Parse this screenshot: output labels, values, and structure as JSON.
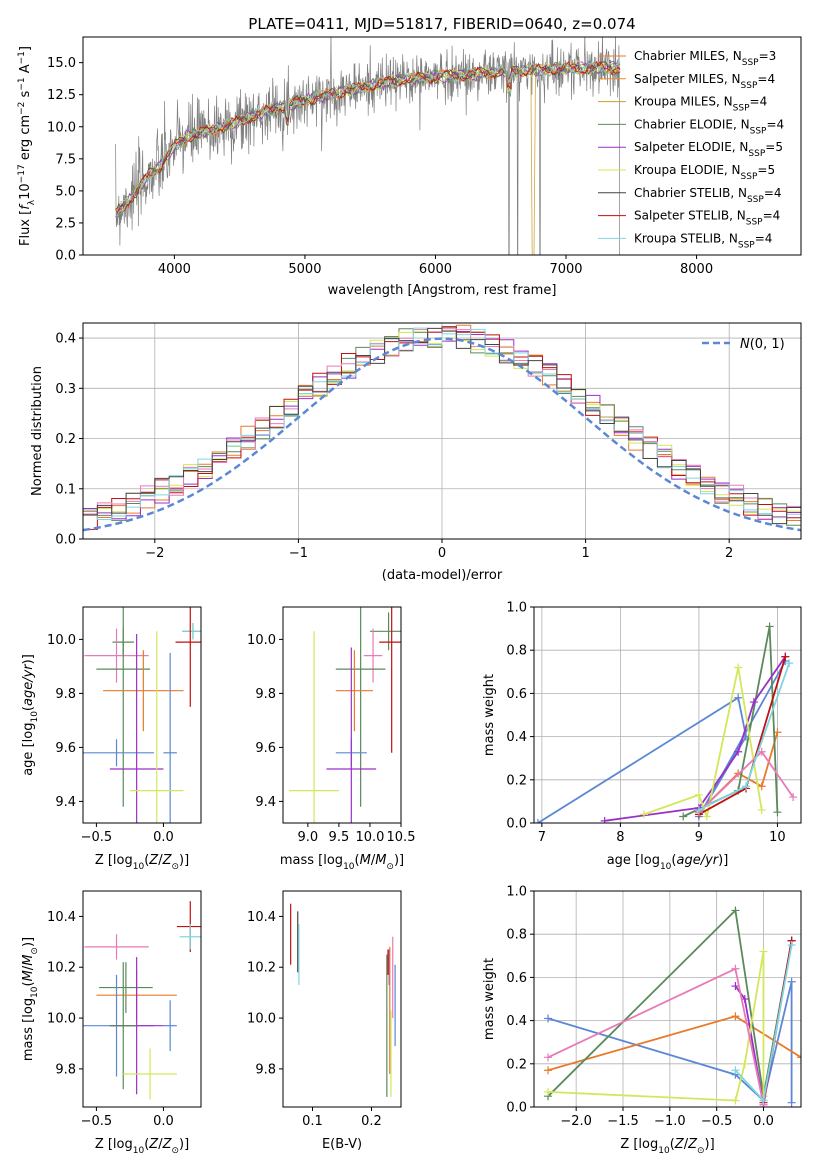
{
  "chart_data": [
    {
      "id": "spectrum",
      "type": "line",
      "title": "PLATE=0411, MJD=51817, FIBERID=0640, z=0.074",
      "xlabel": "wavelength [Angstrom, rest frame]",
      "ylabel": "Flux [f_λ 10^-17 erg cm^-2 s^-1 A^-1]",
      "xlim": [
        3300,
        8800
      ],
      "ylim": [
        0,
        17
      ],
      "xticks": [
        4000,
        5000,
        6000,
        7000,
        8000
      ],
      "yticks": [
        0.0,
        2.5,
        5.0,
        7.5,
        10.0,
        12.5,
        15.0
      ],
      "legend_position": "right",
      "series": [
        {
          "name": "Chabrier MILES, N_SSP=3",
          "color": "#e87a2b"
        },
        {
          "name": "Salpeter MILES, N_SSP=4",
          "color": "#f08a2c"
        },
        {
          "name": "Kroupa MILES, N_SSP=4",
          "color": "#c8a02c"
        },
        {
          "name": "Chabrier ELODIE, N_SSP=4",
          "color": "#5a8a5a"
        },
        {
          "name": "Salpeter ELODIE, N_SSP=5",
          "color": "#9b30c8"
        },
        {
          "name": "Kroupa ELODIE, N_SSP=5",
          "color": "#d4e65a"
        },
        {
          "name": "Chabrier STELIB, N_SSP=4",
          "color": "#444444"
        },
        {
          "name": "Salpeter STELIB, N_SSP=4",
          "color": "#c01010"
        },
        {
          "name": "Kroupa STELIB, N_SSP=4",
          "color": "#7fd6e0"
        }
      ],
      "observed_color": "#7f7f7f",
      "continuum": {
        "x": [
          3550,
          3600,
          3700,
          3800,
          3900,
          4000,
          4100,
          4200,
          4300,
          4500,
          4700,
          4900,
          5100,
          5300,
          5500,
          5700,
          5900,
          6100,
          6300,
          6500,
          6700,
          6900,
          7100,
          7300,
          7400
        ],
        "y": [
          3.2,
          3.8,
          4.8,
          6.2,
          7.0,
          8.5,
          9.2,
          9.5,
          9.8,
          10.4,
          11.2,
          11.8,
          12.3,
          12.8,
          13.2,
          13.6,
          13.8,
          14.0,
          14.1,
          14.3,
          14.4,
          14.5,
          14.6,
          14.6,
          14.6
        ]
      }
    },
    {
      "id": "residuals",
      "type": "line",
      "xlabel": "(data-model)/error",
      "ylabel": "Normed distribution",
      "xlim": [
        -2.5,
        2.5
      ],
      "ylim": [
        0,
        0.43
      ],
      "xticks": [
        -2,
        -1,
        0,
        1,
        2
      ],
      "yticks": [
        0.0,
        0.1,
        0.2,
        0.3,
        0.4
      ],
      "grid": true,
      "legend_position": "top-right",
      "reference_label": "N(0,1)",
      "reference_color": "#5b87d6"
    },
    {
      "id": "age-vs-Z",
      "type": "scatter",
      "xlabel": "Z [log10(Z/Z⊙)]",
      "ylabel": "age [log10(age/yr)]",
      "xlim": [
        -0.6,
        0.28
      ],
      "ylim": [
        9.32,
        10.12
      ],
      "xticks": [
        -0.5,
        0.0
      ],
      "yticks": [
        9.4,
        9.6,
        9.8,
        10.0
      ],
      "points": [
        {
          "x": 0.22,
          "y": 10.03,
          "xerr": 0.08,
          "yerr": 0.03,
          "color": "#5a8a5a"
        },
        {
          "x": 0.22,
          "y": 10.03,
          "xerr": 0.08,
          "yerr": 0.03,
          "color": "#7fd6e0"
        },
        {
          "x": 0.2,
          "y": 9.99,
          "xerr": 0.11,
          "yerr": 0.24,
          "color": "#c01010"
        },
        {
          "x": -0.3,
          "y": 9.99,
          "xerr": 0.08,
          "yerr": 0.05,
          "color": "#5a8a5a"
        },
        {
          "x": -0.35,
          "y": 9.94,
          "xerr": 0.24,
          "yerr": 0.1,
          "color": "#e87ab8"
        },
        {
          "x": -0.3,
          "y": 9.89,
          "xerr": 0.2,
          "yerr": 0.51,
          "color": "#5a8a5a"
        },
        {
          "x": -0.15,
          "y": 9.81,
          "xerr": 0.3,
          "yerr": 0.15,
          "color": "#e87a2b"
        },
        {
          "x": -0.35,
          "y": 9.58,
          "xerr": 0.28,
          "yerr": 0.05,
          "color": "#5b87d6"
        },
        {
          "x": 0.05,
          "y": 9.58,
          "xerr": 0.05,
          "yerr": 0.37,
          "color": "#5b87d6"
        },
        {
          "x": -0.2,
          "y": 9.52,
          "xerr": 0.2,
          "yerr": 0.5,
          "color": "#9b30c8"
        },
        {
          "x": -0.05,
          "y": 9.44,
          "xerr": 0.2,
          "yerr": 0.59,
          "color": "#d4e65a"
        }
      ]
    },
    {
      "id": "age-vs-mass",
      "type": "scatter",
      "xlabel": "mass [log10(M/M⊙)]",
      "ylabel": "",
      "xlim": [
        8.6,
        10.5
      ],
      "ylim": [
        9.32,
        10.12
      ],
      "xticks": [
        9.0,
        9.5,
        10.0,
        10.5
      ],
      "yticks": [
        9.4,
        9.6,
        9.8,
        10.0
      ],
      "points": [
        {
          "x": 10.3,
          "y": 10.03,
          "xerr": 0.3,
          "yerr": 0.07,
          "color": "#5a8a5a"
        },
        {
          "x": 10.35,
          "y": 9.99,
          "xerr": 0.2,
          "yerr": 0.41,
          "color": "#c01010"
        },
        {
          "x": 10.05,
          "y": 9.94,
          "xerr": 0.15,
          "yerr": 0.1,
          "color": "#e87ab8"
        },
        {
          "x": 9.85,
          "y": 9.89,
          "xerr": 0.4,
          "yerr": 0.51,
          "color": "#5a8a5a"
        },
        {
          "x": 9.75,
          "y": 9.81,
          "xerr": 0.3,
          "yerr": 0.15,
          "color": "#e87a2b"
        },
        {
          "x": 9.7,
          "y": 9.58,
          "xerr": 0.25,
          "yerr": 0.05,
          "color": "#5b87d6"
        },
        {
          "x": 9.7,
          "y": 9.52,
          "xerr": 0.4,
          "yerr": 0.45,
          "color": "#9b30c8"
        },
        {
          "x": 9.1,
          "y": 9.44,
          "xerr": 0.4,
          "yerr": 0.59,
          "color": "#d4e65a"
        }
      ]
    },
    {
      "id": "weight-vs-age",
      "type": "line",
      "xlabel": "age [log10(age/yr)]",
      "ylabel": "mass weight",
      "xlim": [
        6.9,
        10.3
      ],
      "ylim": [
        0,
        1
      ],
      "xticks": [
        7,
        8,
        9,
        10
      ],
      "yticks": [
        0.0,
        0.2,
        0.4,
        0.6,
        0.8,
        1.0
      ],
      "grid": true,
      "series": [
        {
          "color": "#5b87d6",
          "x": [
            6.95,
            9.5,
            9.6,
            9.0,
            10.1
          ],
          "y": [
            0.0,
            0.58,
            0.4,
            0.03,
            0.75
          ]
        },
        {
          "color": "#e87a2b",
          "x": [
            9.0,
            9.5,
            9.8,
            10.0
          ],
          "y": [
            0.05,
            0.23,
            0.17,
            0.42
          ]
        },
        {
          "color": "#5a8a5a",
          "x": [
            8.8,
            9.5,
            9.9,
            10.0
          ],
          "y": [
            0.03,
            0.15,
            0.91,
            0.05
          ]
        },
        {
          "color": "#9b30c8",
          "x": [
            7.8,
            9.0,
            9.5,
            9.7,
            10.1
          ],
          "y": [
            0.01,
            0.07,
            0.33,
            0.56,
            0.77
          ]
        },
        {
          "color": "#d4e65a",
          "x": [
            8.3,
            9.0,
            9.1,
            9.5,
            9.8
          ],
          "y": [
            0.04,
            0.13,
            0.03,
            0.72,
            0.06
          ]
        },
        {
          "color": "#c01010",
          "x": [
            9.0,
            9.6,
            10.1
          ],
          "y": [
            0.04,
            0.16,
            0.77
          ]
        },
        {
          "color": "#e87ab8",
          "x": [
            9.0,
            9.8,
            10.2
          ],
          "y": [
            0.05,
            0.33,
            0.12
          ]
        },
        {
          "color": "#7fd6e0",
          "x": [
            9.0,
            9.6,
            10.15
          ],
          "y": [
            0.06,
            0.17,
            0.74
          ]
        }
      ]
    },
    {
      "id": "mass-vs-Z",
      "type": "scatter",
      "xlabel": "Z [log10(Z/Z⊙)]",
      "ylabel": "mass [log10(M/M⊙)]",
      "xlim": [
        -0.6,
        0.28
      ],
      "ylim": [
        9.65,
        10.5
      ],
      "xticks": [
        -0.5,
        0.0
      ],
      "yticks": [
        9.8,
        10.0,
        10.2,
        10.4
      ],
      "points": [
        {
          "x": 0.2,
          "y": 10.36,
          "xerr": 0.1,
          "yerr": 0.1,
          "color": "#c01010"
        },
        {
          "x": 0.2,
          "y": 10.32,
          "xerr": 0.08,
          "yerr": 0.05,
          "color": "#7fd6e0"
        },
        {
          "x": -0.35,
          "y": 10.28,
          "xerr": 0.24,
          "yerr": 0.05,
          "color": "#e87ab8"
        },
        {
          "x": -0.28,
          "y": 10.12,
          "xerr": 0.2,
          "yerr": 0.1,
          "color": "#5a8a5a"
        },
        {
          "x": -0.2,
          "y": 10.09,
          "xerr": 0.3,
          "yerr": 0.1,
          "color": "#e87a2b"
        },
        {
          "x": -0.35,
          "y": 9.97,
          "xerr": 0.28,
          "yerr": 0.2,
          "color": "#5b87d6"
        },
        {
          "x": 0.05,
          "y": 9.97,
          "xerr": 0.05,
          "yerr": 0.1,
          "color": "#5b87d6"
        },
        {
          "x": -0.2,
          "y": 9.97,
          "xerr": 0.2,
          "yerr": 0.27,
          "color": "#9b30c8"
        },
        {
          "x": -0.3,
          "y": 9.97,
          "xerr": 0.1,
          "yerr": 0.25,
          "color": "#5a8a5a"
        },
        {
          "x": -0.1,
          "y": 9.78,
          "xerr": 0.2,
          "yerr": 0.1,
          "color": "#d4e65a"
        }
      ]
    },
    {
      "id": "mass-vs-ebv",
      "type": "scatter",
      "xlabel": "E(B-V)",
      "ylabel": "",
      "xlim": [
        0.05,
        0.25
      ],
      "ylim": [
        9.65,
        10.5
      ],
      "xticks": [
        0.1,
        0.2
      ],
      "yticks": [
        9.8,
        10.0,
        10.2,
        10.4
      ],
      "points": [
        {
          "x": 0.063,
          "y": 10.33,
          "xerr": 0,
          "yerr": 0.12,
          "color": "#c01010"
        },
        {
          "x": 0.075,
          "y": 10.3,
          "xerr": 0,
          "yerr": 0.12,
          "color": "#444444"
        },
        {
          "x": 0.077,
          "y": 10.25,
          "xerr": 0,
          "yerr": 0.12,
          "color": "#7fd6e0"
        },
        {
          "x": 0.226,
          "y": 9.97,
          "xerr": 0,
          "yerr": 0.28,
          "color": "#5a8a5a"
        },
        {
          "x": 0.228,
          "y": 10.22,
          "xerr": 0,
          "yerr": 0.05,
          "color": "#c01010"
        },
        {
          "x": 0.23,
          "y": 10.2,
          "xerr": 0,
          "yerr": 0.07,
          "color": "#9b30c8"
        },
        {
          "x": 0.231,
          "y": 10.03,
          "xerr": 0,
          "yerr": 0.25,
          "color": "#e87a2b"
        },
        {
          "x": 0.233,
          "y": 9.86,
          "xerr": 0,
          "yerr": 0.17,
          "color": "#d4e65a"
        },
        {
          "x": 0.236,
          "y": 10.16,
          "xerr": 0,
          "yerr": 0.16,
          "color": "#e87ab8"
        },
        {
          "x": 0.24,
          "y": 10.05,
          "xerr": 0,
          "yerr": 0.16,
          "color": "#5b87d6"
        }
      ]
    },
    {
      "id": "weight-vs-Z",
      "type": "line",
      "xlabel": "Z [log10(Z/Z⊙)]",
      "ylabel": "mass weight",
      "xlim": [
        -2.45,
        0.4
      ],
      "ylim": [
        0,
        1
      ],
      "xticks": [
        -2.0,
        -1.5,
        -1.0,
        -0.5,
        0.0
      ],
      "yticks": [
        0.0,
        0.2,
        0.4,
        0.6,
        0.8,
        1.0
      ],
      "grid": true,
      "series": [
        {
          "color": "#5b87d6",
          "x": [
            -2.3,
            -0.3,
            0.0,
            0.3,
            0.3
          ],
          "y": [
            0.41,
            0.15,
            0.03,
            0.58,
            0.02
          ]
        },
        {
          "color": "#e87a2b",
          "x": [
            -2.3,
            -0.3,
            0.4
          ],
          "y": [
            0.17,
            0.42,
            0.23
          ]
        },
        {
          "color": "#5a8a5a",
          "x": [
            -2.3,
            -0.3,
            0.0,
            0.3
          ],
          "y": [
            0.05,
            0.91,
            0.05,
            0.77
          ]
        },
        {
          "color": "#9b30c8",
          "x": [
            -0.3,
            -0.2,
            0.0,
            0.3
          ],
          "y": [
            0.56,
            0.5,
            0.01,
            0.77
          ]
        },
        {
          "color": "#d4e65a",
          "x": [
            -2.3,
            -0.3,
            -0.2,
            0.0,
            0.0
          ],
          "y": [
            0.07,
            0.03,
            0.2,
            0.72,
            0.05
          ]
        },
        {
          "color": "#c01010",
          "x": [
            0.0,
            0.3
          ],
          "y": [
            0.02,
            0.77
          ]
        },
        {
          "color": "#e87ab8",
          "x": [
            -2.3,
            -0.3,
            0.0
          ],
          "y": [
            0.23,
            0.64,
            0.01
          ]
        },
        {
          "color": "#7fd6e0",
          "x": [
            -0.3,
            0.0,
            0.3
          ],
          "y": [
            0.17,
            0.03,
            0.75
          ]
        }
      ]
    }
  ]
}
